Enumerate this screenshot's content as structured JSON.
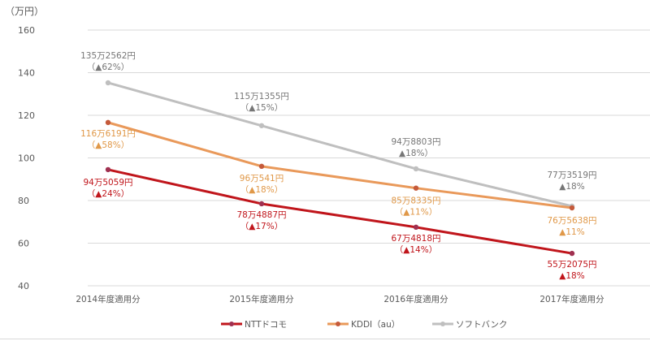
{
  "chart_data": {
    "type": "line",
    "title": "",
    "ylabel": "（万円）",
    "xlabel": "",
    "ylim": [
      40,
      160
    ],
    "yticks": [
      40,
      60,
      80,
      100,
      120,
      140,
      160
    ],
    "grid": true,
    "legend_position": "bottom",
    "categories": [
      "2014年度適用分",
      "2015年度適用分",
      "2016年度適用分",
      "2017年度適用分"
    ],
    "series": [
      {
        "name": "NTTドコモ",
        "color": "#c0151b",
        "marker_color": "#a03050",
        "label_color": "#c0151b",
        "values": [
          94.5059,
          78.4887,
          67.4818,
          55.2075
        ],
        "labels": [
          "94万5059円",
          "78万4887円",
          "67万4818円",
          "55万2075円"
        ],
        "sublabels": [
          "（▲24%）",
          "（▲17%）",
          "（▲14%）",
          "▲18%"
        ]
      },
      {
        "name": "KDDI（au）",
        "color": "#e9995a",
        "marker_color": "#c55a3a",
        "label_color": "#e09848",
        "values": [
          116.6191,
          96.0541,
          85.8335,
          76.5638
        ],
        "labels": [
          "116万6191円",
          "96万541円",
          "85万8335円",
          "76万5638円"
        ],
        "sublabels": [
          "（▲58%）",
          "（▲18%）",
          "（▲11%）",
          "▲11%"
        ]
      },
      {
        "name": "ソフトバンク",
        "color": "#bfbfbf",
        "marker_color": "#bfbfbf",
        "label_color": "#767676",
        "values": [
          135.2562,
          115.1355,
          94.8803,
          77.3519
        ],
        "labels": [
          "135万2562円",
          "115万1355円",
          "94万8803円",
          "77万3519円"
        ],
        "sublabels": [
          "（▲62%）",
          "（▲15%）",
          "▲18%）",
          "▲18%"
        ]
      }
    ]
  }
}
